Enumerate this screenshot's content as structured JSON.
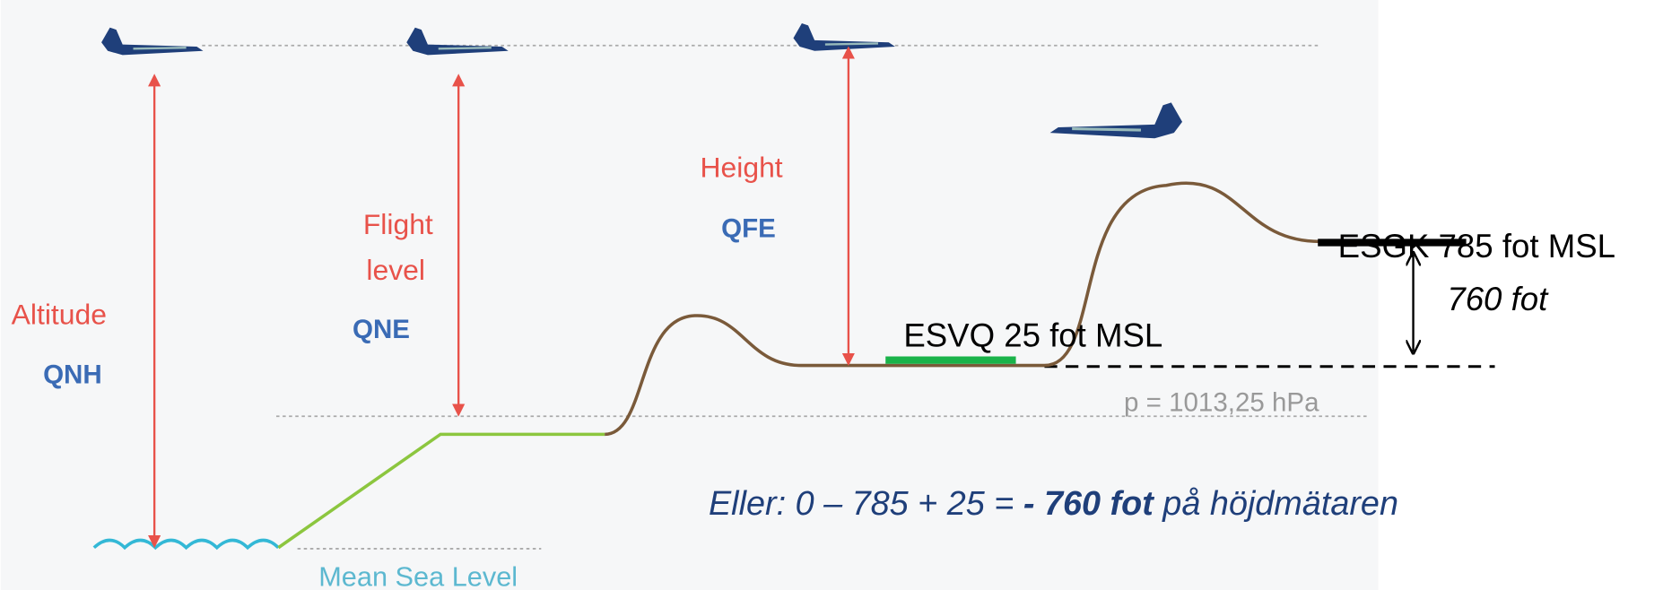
{
  "labels": {
    "altitude": "Altitude",
    "qnh": "QNH",
    "flight_level": [
      "Flight",
      "level"
    ],
    "qne": "QNE",
    "height": "Height",
    "qfe": "QFE",
    "msl": "Mean Sea Level",
    "pressure": "p = 1013,25 hPa",
    "esvq": "ESVQ 25 fot MSL",
    "esgk": "ESGK 785 fot MSL",
    "difference": "760 fot"
  },
  "equation": {
    "prefix": "Eller: 0 – 785 + 25 = ",
    "bold": "- 760 fot",
    "suffix": " på höjdmätaren"
  }
}
